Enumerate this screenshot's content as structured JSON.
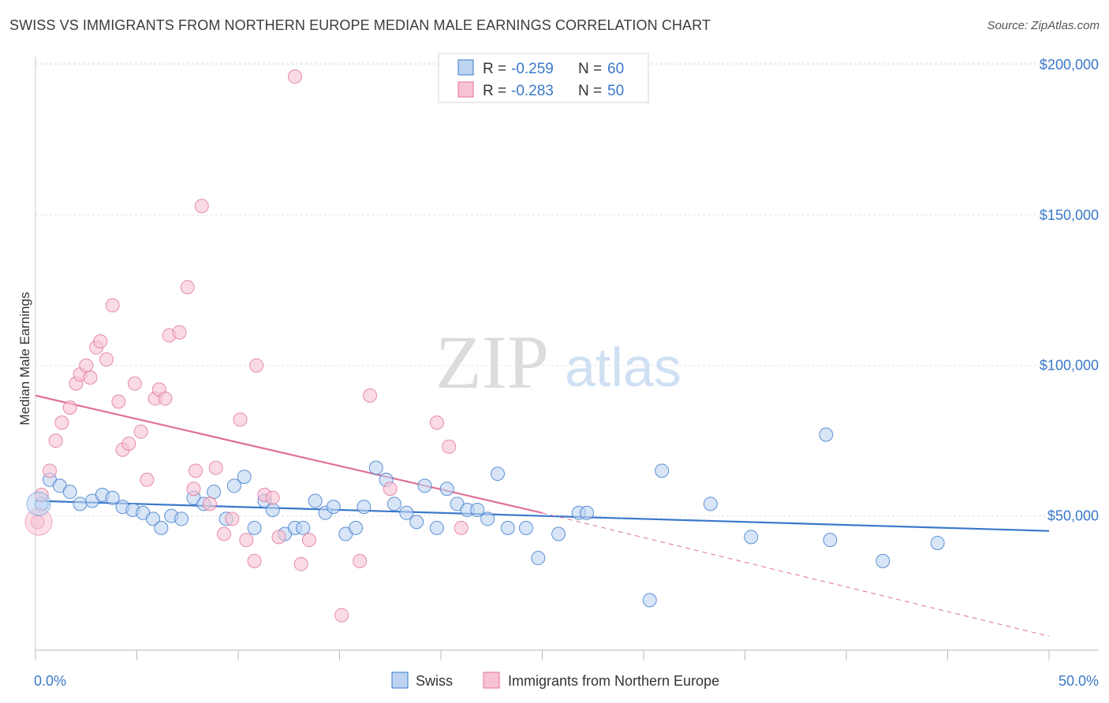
{
  "title": "SWISS VS IMMIGRANTS FROM NORTHERN EUROPE MEDIAN MALE EARNINGS CORRELATION CHART",
  "source": "Source: ZipAtlas.com",
  "watermark": {
    "part1": "ZIP",
    "part2": "atlas"
  },
  "colors": {
    "blue": "#3a78c9",
    "blue_fill": "#bcd4f2",
    "pink": "#e0709a",
    "pink_fill": "#f7c3d4"
  },
  "chart_data": {
    "type": "scatter",
    "xlabel": "",
    "ylabel": "Median Male Earnings",
    "xlim": [
      0,
      50
    ],
    "ylim": [
      0,
      210000
    ],
    "x_tick_labels": [
      "0.0%",
      "50.0%"
    ],
    "y_ticks": [
      50000,
      100000,
      150000,
      200000
    ],
    "y_tick_labels": [
      "$50,000",
      "$100,000",
      "$150,000",
      "$200,000"
    ],
    "grid": true,
    "legend_top": [
      {
        "r_label": "R =",
        "r_value": "-0.259",
        "n_label": "N =",
        "n_value": "60"
      },
      {
        "r_label": "R =",
        "r_value": "-0.283",
        "n_label": "N =",
        "n_value": "50"
      }
    ],
    "series": [
      {
        "name": "Swiss",
        "color": "#3a78c9",
        "trend": {
          "x0": 0,
          "y0": 55000,
          "x1": 50,
          "y1": 45000
        },
        "points": [
          [
            0.3,
            54000
          ],
          [
            0.7,
            62000
          ],
          [
            1.2,
            60000
          ],
          [
            1.7,
            58000
          ],
          [
            2.2,
            54000
          ],
          [
            2.8,
            55000
          ],
          [
            3.3,
            57000
          ],
          [
            3.8,
            56000
          ],
          [
            4.3,
            53000
          ],
          [
            4.8,
            52000
          ],
          [
            5.3,
            51000
          ],
          [
            5.8,
            49000
          ],
          [
            6.2,
            46000
          ],
          [
            6.7,
            50000
          ],
          [
            7.2,
            49000
          ],
          [
            7.8,
            56000
          ],
          [
            8.3,
            54000
          ],
          [
            8.8,
            58000
          ],
          [
            9.4,
            49000
          ],
          [
            9.8,
            60000
          ],
          [
            10.3,
            63000
          ],
          [
            10.8,
            46000
          ],
          [
            11.3,
            55000
          ],
          [
            11.7,
            52000
          ],
          [
            12.3,
            44000
          ],
          [
            12.8,
            46000
          ],
          [
            13.2,
            46000
          ],
          [
            13.8,
            55000
          ],
          [
            14.3,
            51000
          ],
          [
            14.7,
            53000
          ],
          [
            15.3,
            44000
          ],
          [
            15.8,
            46000
          ],
          [
            16.2,
            53000
          ],
          [
            16.8,
            66000
          ],
          [
            17.3,
            62000
          ],
          [
            17.7,
            54000
          ],
          [
            18.3,
            51000
          ],
          [
            18.8,
            48000
          ],
          [
            19.2,
            60000
          ],
          [
            19.8,
            46000
          ],
          [
            20.3,
            59000
          ],
          [
            20.8,
            54000
          ],
          [
            21.3,
            52000
          ],
          [
            21.8,
            52000
          ],
          [
            22.3,
            49000
          ],
          [
            22.8,
            64000
          ],
          [
            23.3,
            46000
          ],
          [
            24.2,
            46000
          ],
          [
            24.8,
            36000
          ],
          [
            25.8,
            44000
          ],
          [
            26.8,
            51000
          ],
          [
            27.2,
            51000
          ],
          [
            30.3,
            22000
          ],
          [
            30.9,
            65000
          ],
          [
            33.3,
            54000
          ],
          [
            35.3,
            43000
          ],
          [
            39.0,
            77000
          ],
          [
            39.2,
            42000
          ],
          [
            41.8,
            35000
          ],
          [
            44.5,
            41000
          ]
        ]
      },
      {
        "name": "Immigrants from Northern Europe",
        "color": "#e0709a",
        "trend": {
          "x0": 0,
          "y0": 90000,
          "x1": 25,
          "y1": 51000,
          "dash_to": {
            "x": 50,
            "y": 10000
          }
        },
        "points": [
          [
            0.1,
            48000
          ],
          [
            0.3,
            57000
          ],
          [
            0.7,
            65000
          ],
          [
            1.0,
            75000
          ],
          [
            1.3,
            81000
          ],
          [
            1.7,
            86000
          ],
          [
            2.0,
            94000
          ],
          [
            2.2,
            97000
          ],
          [
            2.5,
            100000
          ],
          [
            2.7,
            96000
          ],
          [
            3.0,
            106000
          ],
          [
            3.2,
            108000
          ],
          [
            3.5,
            102000
          ],
          [
            3.8,
            120000
          ],
          [
            4.1,
            88000
          ],
          [
            4.3,
            72000
          ],
          [
            4.6,
            74000
          ],
          [
            4.9,
            94000
          ],
          [
            5.2,
            78000
          ],
          [
            5.5,
            62000
          ],
          [
            5.9,
            89000
          ],
          [
            6.1,
            92000
          ],
          [
            6.4,
            89000
          ],
          [
            6.6,
            110000
          ],
          [
            7.1,
            111000
          ],
          [
            7.5,
            126000
          ],
          [
            7.8,
            59000
          ],
          [
            7.9,
            65000
          ],
          [
            8.2,
            153000
          ],
          [
            8.6,
            54000
          ],
          [
            8.9,
            66000
          ],
          [
            9.3,
            44000
          ],
          [
            9.7,
            49000
          ],
          [
            10.1,
            82000
          ],
          [
            10.4,
            42000
          ],
          [
            10.8,
            35000
          ],
          [
            10.9,
            100000
          ],
          [
            11.3,
            57000
          ],
          [
            11.7,
            56000
          ],
          [
            12.0,
            43000
          ],
          [
            12.8,
            196000
          ],
          [
            13.1,
            34000
          ],
          [
            13.5,
            42000
          ],
          [
            15.1,
            17000
          ],
          [
            16.0,
            35000
          ],
          [
            16.5,
            90000
          ],
          [
            17.5,
            59000
          ],
          [
            19.8,
            81000
          ],
          [
            20.4,
            73000
          ],
          [
            21.0,
            46000
          ]
        ]
      }
    ]
  }
}
